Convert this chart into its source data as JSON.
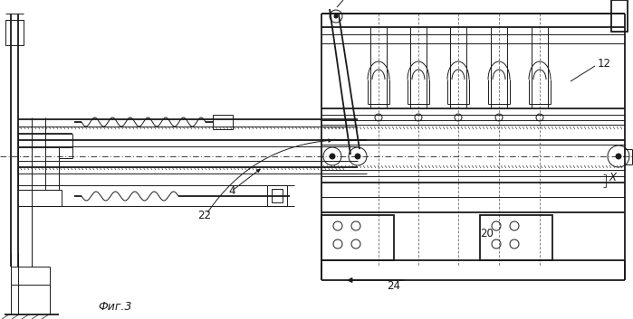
{
  "fig_width": 6.99,
  "fig_height": 3.53,
  "dpi": 100,
  "bg_color": "#ffffff",
  "line_color": "#1a1a1a",
  "label_12": "12",
  "label_4": "4",
  "label_20": "20",
  "label_22": "22",
  "label_24": "24",
  "label_X": "X",
  "caption": "Фиг.3",
  "lw": 0.7,
  "tlw": 1.3
}
